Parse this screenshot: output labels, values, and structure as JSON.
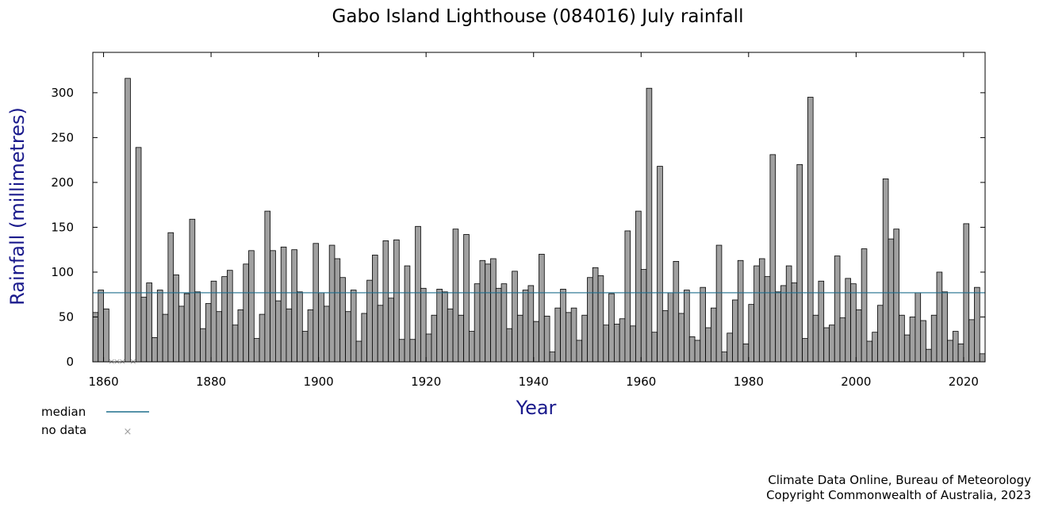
{
  "chart_data": {
    "type": "bar",
    "title": "Gabo Island Lighthouse (084016) July rainfall",
    "xlabel": "Year",
    "ylabel": "Rainfall (millimetres)",
    "xlim": [
      1858,
      2024
    ],
    "ylim": [
      0,
      345
    ],
    "x_ticks": [
      1860,
      1880,
      1900,
      1920,
      1940,
      1960,
      1980,
      2000,
      2020
    ],
    "y_ticks": [
      0,
      50,
      100,
      150,
      200,
      250,
      300
    ],
    "median": 77,
    "no_data_years": [
      1861,
      1862,
      1863,
      1865
    ],
    "years": [
      1858,
      1859,
      1860,
      1864,
      1866,
      1867,
      1868,
      1869,
      1870,
      1871,
      1872,
      1873,
      1874,
      1875,
      1876,
      1877,
      1878,
      1879,
      1880,
      1881,
      1882,
      1883,
      1884,
      1885,
      1886,
      1887,
      1888,
      1889,
      1890,
      1891,
      1892,
      1893,
      1894,
      1895,
      1896,
      1897,
      1898,
      1899,
      1900,
      1901,
      1902,
      1903,
      1904,
      1905,
      1906,
      1907,
      1908,
      1909,
      1910,
      1911,
      1912,
      1913,
      1914,
      1915,
      1916,
      1917,
      1918,
      1919,
      1920,
      1921,
      1922,
      1923,
      1924,
      1925,
      1926,
      1927,
      1928,
      1929,
      1930,
      1931,
      1932,
      1933,
      1934,
      1935,
      1936,
      1937,
      1938,
      1939,
      1940,
      1941,
      1942,
      1943,
      1944,
      1945,
      1946,
      1947,
      1948,
      1949,
      1950,
      1951,
      1952,
      1953,
      1954,
      1955,
      1956,
      1957,
      1958,
      1959,
      1960,
      1961,
      1962,
      1963,
      1964,
      1965,
      1966,
      1967,
      1968,
      1969,
      1970,
      1971,
      1972,
      1973,
      1974,
      1975,
      1976,
      1977,
      1978,
      1979,
      1980,
      1981,
      1982,
      1983,
      1984,
      1985,
      1986,
      1987,
      1988,
      1989,
      1990,
      1991,
      1992,
      1993,
      1994,
      1995,
      1996,
      1997,
      1998,
      1999,
      2000,
      2001,
      2002,
      2003,
      2004,
      2005,
      2006,
      2007,
      2008,
      2009,
      2010,
      2011,
      2012,
      2013,
      2014,
      2015,
      2016,
      2017,
      2018,
      2019,
      2020,
      2021,
      2022,
      2023
    ],
    "values": [
      55,
      80,
      59,
      316,
      239,
      72,
      88,
      27,
      80,
      53,
      144,
      97,
      62,
      76,
      159,
      78,
      37,
      65,
      90,
      56,
      95,
      102,
      41,
      58,
      109,
      124,
      26,
      53,
      168,
      124,
      68,
      128,
      59,
      125,
      78,
      34,
      58,
      132,
      77,
      62,
      130,
      115,
      94,
      56,
      80,
      23,
      54,
      91,
      119,
      63,
      135,
      71,
      136,
      25,
      107,
      25,
      151,
      82,
      31,
      52,
      81,
      78,
      59,
      148,
      52,
      142,
      34,
      87,
      113,
      109,
      115,
      82,
      87,
      37,
      101,
      52,
      80,
      85,
      45,
      120,
      51,
      11,
      60,
      81,
      55,
      60,
      24,
      52,
      94,
      105,
      96,
      41,
      76,
      42,
      48,
      146,
      40,
      168,
      103,
      305,
      33,
      218,
      57,
      77,
      112,
      54,
      80,
      28,
      24,
      83,
      38,
      60,
      130,
      11,
      32,
      69,
      113,
      20,
      64,
      107,
      115,
      95,
      231,
      78,
      85,
      107,
      88,
      220,
      26,
      295,
      52,
      90,
      38,
      41,
      118,
      49,
      93,
      87,
      58,
      126,
      23,
      33,
      63,
      204,
      137,
      148,
      52,
      30,
      50,
      77,
      46,
      14,
      52,
      100,
      78,
      24,
      34,
      20,
      154,
      47,
      83,
      9
    ]
  },
  "legend": {
    "median_label": "median",
    "no_data_label": "no data"
  },
  "credit": {
    "line1": "Climate Data Online, Bureau of Meteorology",
    "line2": "Copyright Commonwealth of Australia, 2023"
  },
  "colors": {
    "bar_fill": "#a0a0a0",
    "bar_stroke": "#000000",
    "median_line": "#1f6e8c",
    "no_data_mark": "#a0a0a0",
    "axis_label": "#1a1a8c"
  }
}
